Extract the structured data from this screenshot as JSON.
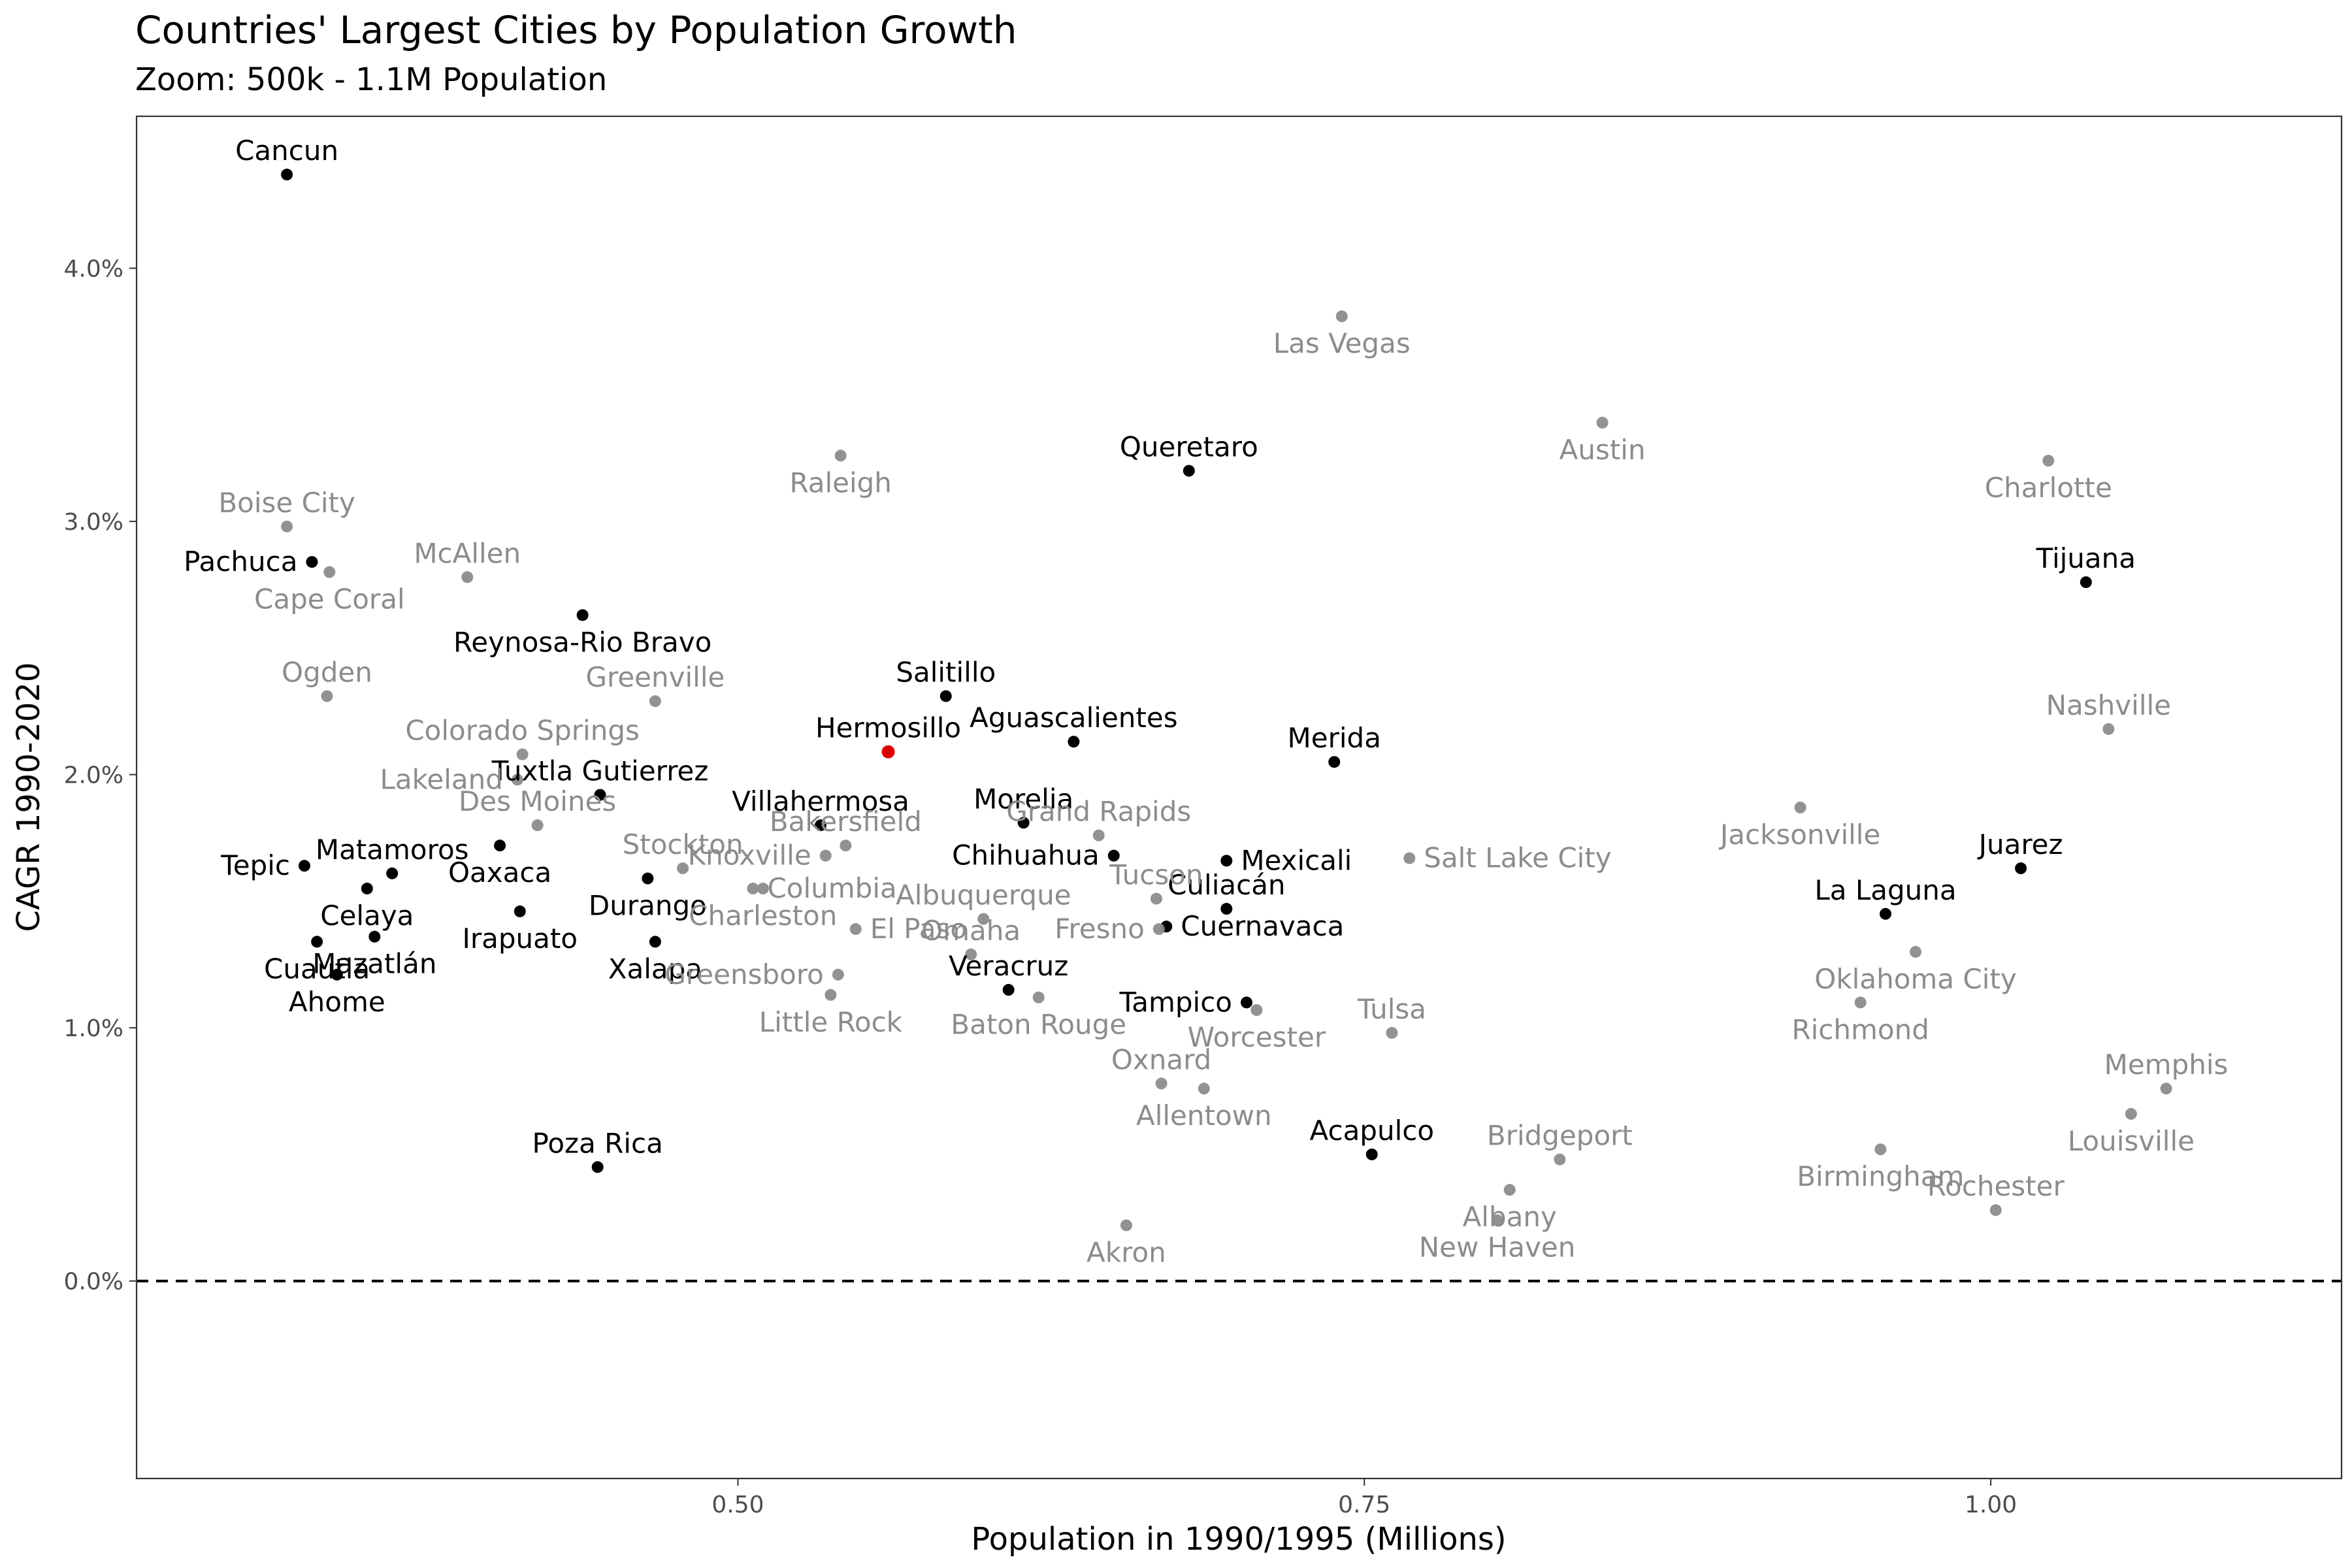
{
  "chart_data": {
    "type": "scatter",
    "title": "Countries' Largest Cities by Population Growth",
    "subtitle": "Zoom: 500k - 1.1M Population",
    "xlabel": "Population in 1990/1995 (Millions)",
    "ylabel": "CAGR 1990-2020",
    "x_ticks": [
      0.5,
      0.75,
      1.0
    ],
    "x_tick_labels": [
      "0.50",
      "0.75",
      "1.00"
    ],
    "y_ticks": [
      0,
      1,
      2,
      3,
      4
    ],
    "y_tick_labels": [
      "0.0%",
      "1.0%",
      "2.0%",
      "3.0%",
      "4.0%"
    ],
    "xlim": [
      0.26,
      1.14
    ],
    "ylim": [
      -0.78,
      4.6
    ],
    "reference_line": {
      "y": 0,
      "style": "dashed"
    },
    "grid": false,
    "colors": {
      "mexico": "#000000",
      "us": "#8c8c8c",
      "highlight": "#dd0000"
    },
    "points": [
      {
        "label": "Cancun",
        "x": 0.32,
        "y": 4.37,
        "group": "mexico",
        "anchor": "above",
        "dy": -1,
        "offset": 0
      },
      {
        "label": "Pachuca",
        "x": 0.33,
        "y": 2.84,
        "group": "mexico",
        "anchor": "left",
        "dy": -1,
        "offset": 0
      },
      {
        "label": "Reynosa-Rio Bravo",
        "x": 0.438,
        "y": 2.63,
        "group": "mexico",
        "anchor": "below",
        "dy": 1,
        "offset": 0
      },
      {
        "label": "Salitillo",
        "x": 0.583,
        "y": 2.31,
        "group": "mexico",
        "anchor": "above",
        "dy": -1,
        "offset": 0
      },
      {
        "label": "Hermosillo",
        "x": 0.56,
        "y": 2.09,
        "group": "highlight",
        "anchor": "above",
        "dy": -1,
        "offset": 0
      },
      {
        "label": "Aguascalientes",
        "x": 0.634,
        "y": 2.13,
        "group": "mexico",
        "anchor": "above",
        "dy": -1,
        "offset": 0
      },
      {
        "label": "Queretaro",
        "x": 0.68,
        "y": 3.2,
        "group": "mexico",
        "anchor": "above",
        "dy": -1,
        "offset": 0
      },
      {
        "label": "Merida",
        "x": 0.738,
        "y": 2.05,
        "group": "mexico",
        "anchor": "above",
        "dy": -1,
        "offset": 0
      },
      {
        "label": "Tuxtla Gutierrez",
        "x": 0.445,
        "y": 1.92,
        "group": "mexico",
        "anchor": "above",
        "dy": -1,
        "offset": 0
      },
      {
        "label": "Villahermosa",
        "x": 0.533,
        "y": 1.8,
        "group": "mexico",
        "anchor": "above",
        "dy": -1,
        "offset": 0
      },
      {
        "label": "Morelia",
        "x": 0.614,
        "y": 1.81,
        "group": "mexico",
        "anchor": "above",
        "dy": -1,
        "offset": 0
      },
      {
        "label": "Chihuahua",
        "x": 0.65,
        "y": 1.68,
        "group": "mexico",
        "anchor": "left",
        "dy": 0,
        "offset": 0
      },
      {
        "label": "Mexicali",
        "x": 0.695,
        "y": 1.66,
        "group": "mexico",
        "anchor": "right",
        "dy": 0,
        "offset": 0
      },
      {
        "label": "Culiacán",
        "x": 0.695,
        "y": 1.47,
        "group": "mexico",
        "anchor": "above",
        "dy": -1,
        "offset": 0
      },
      {
        "label": "Cuernavaca",
        "x": 0.671,
        "y": 1.4,
        "group": "mexico",
        "anchor": "right",
        "dy": 0,
        "offset": 0
      },
      {
        "label": "Matamoros",
        "x": 0.362,
        "y": 1.61,
        "group": "mexico",
        "anchor": "above",
        "dy": -1,
        "offset": 0
      },
      {
        "label": "Tepic",
        "x": 0.327,
        "y": 1.64,
        "group": "mexico",
        "anchor": "left",
        "dy": 0,
        "offset": 0
      },
      {
        "label": "Celaya",
        "x": 0.352,
        "y": 1.55,
        "group": "mexico",
        "anchor": "below",
        "dy": 1,
        "offset": 0
      },
      {
        "label": "Oaxaca",
        "x": 0.405,
        "y": 1.72,
        "group": "mexico",
        "anchor": "below",
        "dy": 1,
        "offset": 0
      },
      {
        "label": "Durango",
        "x": 0.464,
        "y": 1.59,
        "group": "mexico",
        "anchor": "below",
        "dy": 1,
        "offset": 0
      },
      {
        "label": "Irapuato",
        "x": 0.413,
        "y": 1.46,
        "group": "mexico",
        "anchor": "below",
        "dy": 1,
        "offset": 0
      },
      {
        "label": "Cuautla",
        "x": 0.332,
        "y": 1.34,
        "group": "mexico",
        "anchor": "below",
        "dy": 1,
        "offset": 0
      },
      {
        "label": "Mazatlán",
        "x": 0.355,
        "y": 1.36,
        "group": "mexico",
        "anchor": "below",
        "dy": 1,
        "offset": 0
      },
      {
        "label": "Ahome",
        "x": 0.34,
        "y": 1.21,
        "group": "mexico",
        "anchor": "below",
        "dy": 1,
        "offset": 0
      },
      {
        "label": "Xalapa",
        "x": 0.467,
        "y": 1.34,
        "group": "mexico",
        "anchor": "below",
        "dy": 1,
        "offset": 0
      },
      {
        "label": "Veracruz",
        "x": 0.608,
        "y": 1.15,
        "group": "mexico",
        "anchor": "above",
        "dy": -1,
        "offset": 0
      },
      {
        "label": "Tampico",
        "x": 0.703,
        "y": 1.1,
        "group": "mexico",
        "anchor": "left",
        "dy": 0,
        "offset": 0
      },
      {
        "label": "Poza Rica",
        "x": 0.444,
        "y": 0.45,
        "group": "mexico",
        "anchor": "above",
        "dy": -1,
        "offset": 0
      },
      {
        "label": "Acapulco",
        "x": 0.753,
        "y": 0.5,
        "group": "mexico",
        "anchor": "above",
        "dy": -1,
        "offset": 0
      },
      {
        "label": "Tijuana",
        "x": 1.038,
        "y": 2.76,
        "group": "mexico",
        "anchor": "above",
        "dy": -1,
        "offset": 0
      },
      {
        "label": "Juarez",
        "x": 1.012,
        "y": 1.63,
        "group": "mexico",
        "anchor": "above",
        "dy": -1,
        "offset": 0
      },
      {
        "label": "La Laguna",
        "x": 0.958,
        "y": 1.45,
        "group": "mexico",
        "anchor": "above",
        "dy": -1,
        "offset": 0
      },
      {
        "label": "Boise City",
        "x": 0.32,
        "y": 2.98,
        "group": "us",
        "anchor": "above",
        "dy": -1,
        "offset": 0
      },
      {
        "label": "Cape Coral",
        "x": 0.337,
        "y": 2.8,
        "group": "us",
        "anchor": "below",
        "dy": 1,
        "offset": 0
      },
      {
        "label": "McAllen",
        "x": 0.392,
        "y": 2.78,
        "group": "us",
        "anchor": "above",
        "dy": -1,
        "offset": 0
      },
      {
        "label": "Ogden",
        "x": 0.336,
        "y": 2.31,
        "group": "us",
        "anchor": "above",
        "dy": -1,
        "offset": 0
      },
      {
        "label": "Colorado Springs",
        "x": 0.414,
        "y": 2.08,
        "group": "us",
        "anchor": "above",
        "dy": -1,
        "offset": 0
      },
      {
        "label": "Lakeland",
        "x": 0.412,
        "y": 1.98,
        "group": "us",
        "anchor": "left",
        "dy": 0,
        "offset": 0
      },
      {
        "label": "Des Moines",
        "x": 0.42,
        "y": 1.8,
        "group": "us",
        "anchor": "above",
        "dy": -1,
        "offset": 0
      },
      {
        "label": "Greenville",
        "x": 0.467,
        "y": 2.29,
        "group": "us",
        "anchor": "above",
        "dy": -1,
        "offset": 0
      },
      {
        "label": "Raleigh",
        "x": 0.541,
        "y": 3.26,
        "group": "us",
        "anchor": "below",
        "dy": 1,
        "offset": 0
      },
      {
        "label": "Las Vegas",
        "x": 0.741,
        "y": 3.81,
        "group": "us",
        "anchor": "below",
        "dy": 1,
        "offset": 0
      },
      {
        "label": "Austin",
        "x": 0.845,
        "y": 3.39,
        "group": "us",
        "anchor": "below",
        "dy": 1,
        "offset": 0
      },
      {
        "label": "Charlotte",
        "x": 1.023,
        "y": 3.24,
        "group": "us",
        "anchor": "below",
        "dy": 1,
        "offset": 0
      },
      {
        "label": "Nashville",
        "x": 1.047,
        "y": 2.18,
        "group": "us",
        "anchor": "above",
        "dy": -1,
        "offset": 0
      },
      {
        "label": "Jacksonville",
        "x": 0.924,
        "y": 1.87,
        "group": "us",
        "anchor": "below",
        "dy": 1,
        "offset": 0
      },
      {
        "label": "Salt Lake City",
        "x": 0.768,
        "y": 1.67,
        "group": "us",
        "anchor": "right",
        "dy": 0,
        "offset": 0
      },
      {
        "label": "Grand Rapids",
        "x": 0.644,
        "y": 1.76,
        "group": "us",
        "anchor": "above",
        "dy": -1,
        "offset": 0
      },
      {
        "label": "Stockton",
        "x": 0.478,
        "y": 1.63,
        "group": "us",
        "anchor": "above",
        "dy": -1,
        "offset": 0
      },
      {
        "label": "Knoxville",
        "x": 0.535,
        "y": 1.68,
        "group": "us",
        "anchor": "left",
        "dy": 0,
        "offset": 0
      },
      {
        "label": "Bakersfield",
        "x": 0.543,
        "y": 1.72,
        "group": "us",
        "anchor": "above",
        "dy": -1,
        "offset": 0
      },
      {
        "label": "Columbia",
        "x": 0.506,
        "y": 1.55,
        "group": "us",
        "anchor": "right",
        "dy": 0,
        "offset": 0
      },
      {
        "label": "Albuquerque",
        "x": 0.598,
        "y": 1.43,
        "group": "us",
        "anchor": "above",
        "dy": -1,
        "offset": 0
      },
      {
        "label": "El Paso",
        "x": 0.547,
        "y": 1.39,
        "group": "us",
        "anchor": "right",
        "dy": 0,
        "offset": 0
      },
      {
        "label": "Tucson",
        "x": 0.667,
        "y": 1.51,
        "group": "us",
        "anchor": "above",
        "dy": -1,
        "offset": 0
      },
      {
        "label": "Fresno",
        "x": 0.668,
        "y": 1.39,
        "group": "us",
        "anchor": "left",
        "dy": 0,
        "offset": 0
      },
      {
        "label": "Charleston",
        "x": 0.51,
        "y": 1.55,
        "group": "us",
        "anchor": "below",
        "dy": 1,
        "offset": 0
      },
      {
        "label": "Greensboro",
        "x": 0.54,
        "y": 1.21,
        "group": "us",
        "anchor": "left",
        "dy": 0,
        "offset": 0
      },
      {
        "label": "Little Rock",
        "x": 0.537,
        "y": 1.13,
        "group": "us",
        "anchor": "below",
        "dy": 1,
        "offset": 0
      },
      {
        "label": "Baton Rouge",
        "x": 0.62,
        "y": 1.12,
        "group": "us",
        "anchor": "below",
        "dy": 1,
        "offset": 0
      },
      {
        "label": "Omaha",
        "x": 0.593,
        "y": 1.29,
        "group": "us",
        "anchor": "above",
        "dy": -1,
        "offset": 0
      },
      {
        "label": "Worcester",
        "x": 0.707,
        "y": 1.07,
        "group": "us",
        "anchor": "below",
        "dy": 1,
        "offset": 0
      },
      {
        "label": "Oxnard",
        "x": 0.669,
        "y": 0.78,
        "group": "us",
        "anchor": "above",
        "dy": -1,
        "offset": 0
      },
      {
        "label": "Allentown",
        "x": 0.686,
        "y": 0.76,
        "group": "us",
        "anchor": "below",
        "dy": 1,
        "offset": 0
      },
      {
        "label": "Tulsa",
        "x": 0.761,
        "y": 0.98,
        "group": "us",
        "anchor": "above",
        "dy": -1,
        "offset": 0
      },
      {
        "label": "Akron",
        "x": 0.655,
        "y": 0.22,
        "group": "us",
        "anchor": "below",
        "dy": 1,
        "offset": 0
      },
      {
        "label": "Bridgeport",
        "x": 0.828,
        "y": 0.48,
        "group": "us",
        "anchor": "above",
        "dy": -1,
        "offset": 0
      },
      {
        "label": "Albany",
        "x": 0.808,
        "y": 0.36,
        "group": "us",
        "anchor": "below",
        "dy": 1,
        "offset": 0
      },
      {
        "label": "New Haven",
        "x": 0.803,
        "y": 0.24,
        "group": "us",
        "anchor": "below",
        "dy": 1,
        "offset": 0
      },
      {
        "label": "Oklahoma City",
        "x": 0.97,
        "y": 1.3,
        "group": "us",
        "anchor": "below",
        "dy": 1,
        "offset": 0
      },
      {
        "label": "Richmond",
        "x": 0.948,
        "y": 1.1,
        "group": "us",
        "anchor": "below",
        "dy": 1,
        "offset": 0
      },
      {
        "label": "Birmingham",
        "x": 0.956,
        "y": 0.52,
        "group": "us",
        "anchor": "below",
        "dy": 1,
        "offset": 0
      },
      {
        "label": "Rochester",
        "x": 1.002,
        "y": 0.28,
        "group": "us",
        "anchor": "above",
        "dy": -1,
        "offset": 0
      },
      {
        "label": "Memphis",
        "x": 1.07,
        "y": 0.76,
        "group": "us",
        "anchor": "above",
        "dy": -1,
        "offset": 0
      },
      {
        "label": "Louisville",
        "x": 1.056,
        "y": 0.66,
        "group": "us",
        "anchor": "below",
        "dy": 1,
        "offset": 0
      }
    ]
  }
}
